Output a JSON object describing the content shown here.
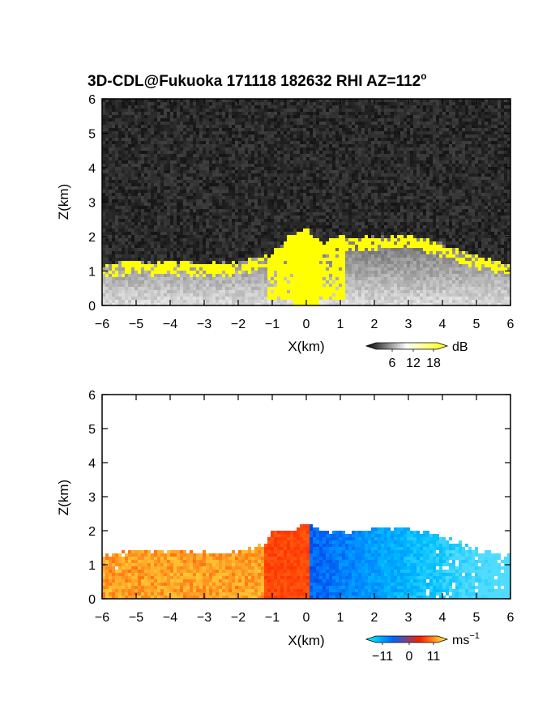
{
  "title": "3D-CDL@Fukuoka 171118 182632 RHI AZ=112",
  "title_sup": "o",
  "chart_data": [
    {
      "type": "heatmap",
      "panel": "power",
      "xlabel": "X(km)",
      "ylabel": "Z(km)",
      "xlim": [
        -6,
        6
      ],
      "ylim": [
        0,
        6
      ],
      "xticks": [
        "-6",
        "-5",
        "-4",
        "-3",
        "-2",
        "-1",
        "0",
        "1",
        "2",
        "3",
        "4",
        "5",
        "6"
      ],
      "yticks": [
        "0",
        "1",
        "2",
        "3",
        "4",
        "5",
        "6"
      ],
      "colorbar": {
        "unit": "dB",
        "ticks": [
          "6",
          "12",
          "18"
        ],
        "colors": [
          "#000000",
          "#ffffff",
          "#ffff00"
        ]
      },
      "top_boundary_km": [
        [
          -6.0,
          1.15
        ],
        [
          -5.0,
          1.3
        ],
        [
          -4.0,
          1.25
        ],
        [
          -3.0,
          1.2
        ],
        [
          -2.0,
          1.25
        ],
        [
          -1.0,
          1.5
        ],
        [
          -0.5,
          2.0
        ],
        [
          0.0,
          2.2
        ],
        [
          0.5,
          1.8
        ],
        [
          1.0,
          2.0
        ],
        [
          2.0,
          1.95
        ],
        [
          3.0,
          2.05
        ],
        [
          4.0,
          1.8
        ],
        [
          5.0,
          1.45
        ],
        [
          6.0,
          1.2
        ]
      ]
    },
    {
      "type": "heatmap",
      "panel": "velocity",
      "xlabel": "X(km)",
      "ylabel": "Z(km)",
      "xlim": [
        -6,
        6
      ],
      "ylim": [
        0,
        6
      ],
      "xticks": [
        "-6",
        "-5",
        "-4",
        "-3",
        "-2",
        "-1",
        "0",
        "1",
        "2",
        "3",
        "4",
        "5",
        "6"
      ],
      "yticks": [
        "0",
        "1",
        "2",
        "3",
        "4",
        "5",
        "6"
      ],
      "colorbar": {
        "unit": "ms",
        "unit_sup": "−1",
        "ticks": [
          "−11",
          "0",
          "11"
        ],
        "colors": [
          "#00ffff",
          "#0064ff",
          "#ff2000",
          "#ffff40"
        ]
      },
      "top_boundary_km": [
        [
          -6.0,
          1.25
        ],
        [
          -5.0,
          1.45
        ],
        [
          -4.0,
          1.4
        ],
        [
          -3.0,
          1.35
        ],
        [
          -2.0,
          1.4
        ],
        [
          -1.2,
          1.6
        ],
        [
          -1.0,
          2.0
        ],
        [
          -0.5,
          2.0
        ],
        [
          0.0,
          2.2
        ],
        [
          0.5,
          2.0
        ],
        [
          1.0,
          1.95
        ],
        [
          2.0,
          2.1
        ],
        [
          3.0,
          2.05
        ],
        [
          4.0,
          1.8
        ],
        [
          5.0,
          1.45
        ],
        [
          6.0,
          1.25
        ]
      ]
    }
  ]
}
